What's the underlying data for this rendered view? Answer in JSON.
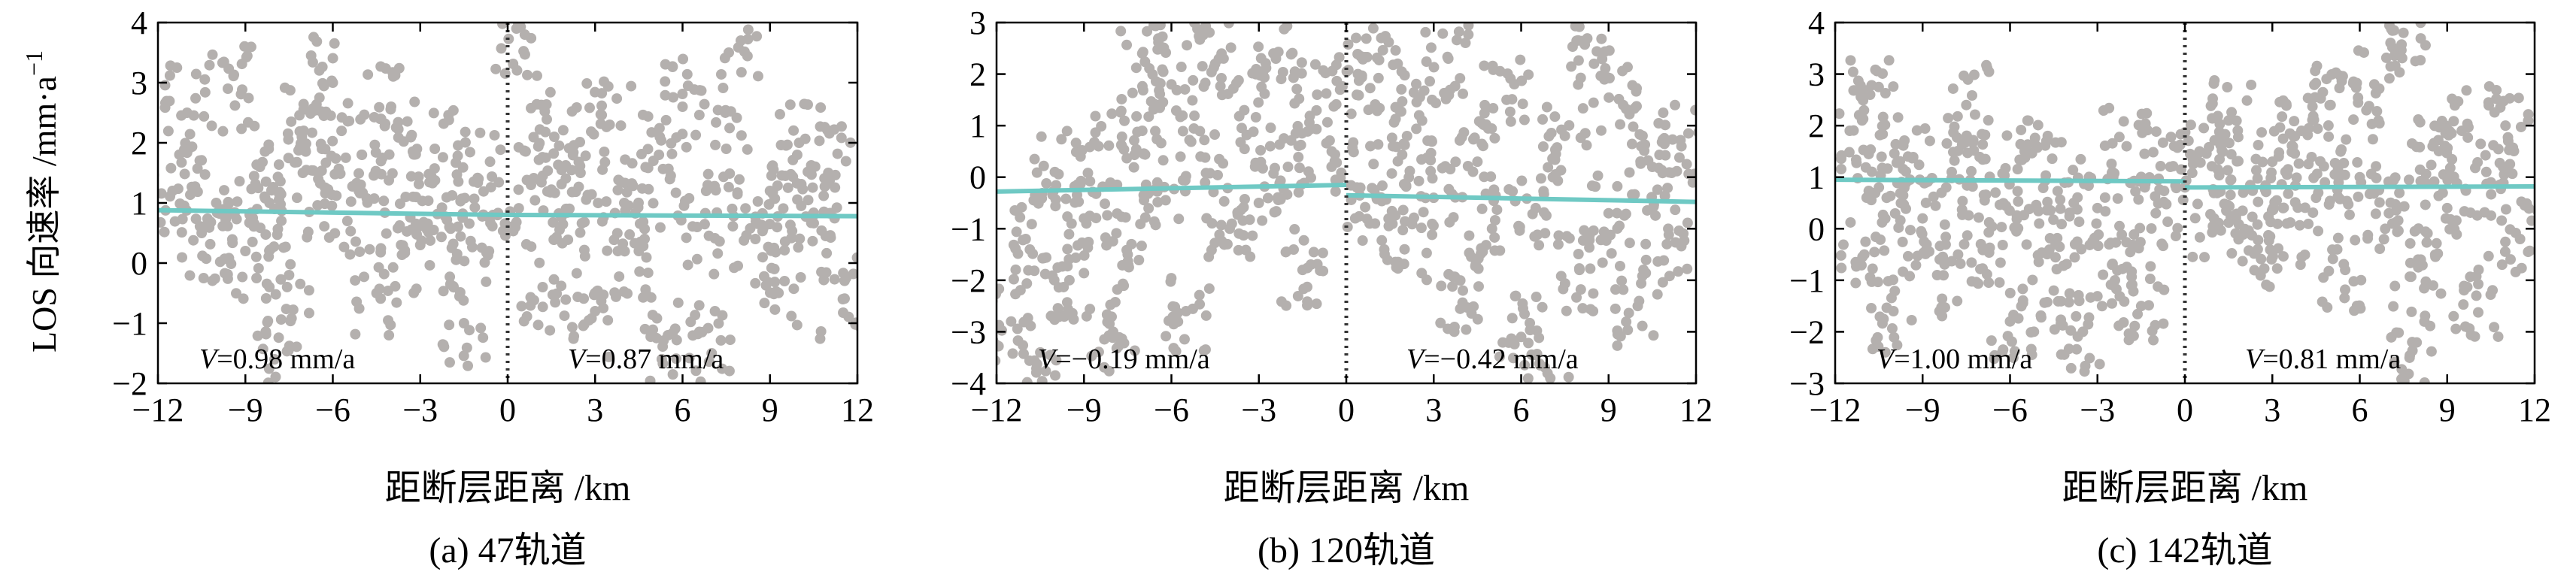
{
  "figure": {
    "ylabel": "LOS 向速率 /mm·a",
    "ylabel_sup": "−1"
  },
  "chart_data": [
    {
      "type": "scatter",
      "caption": "(a) 47轨道",
      "xlabel": "距断层距离 /km",
      "ylabel": "LOS 向速率 /mm·a⁻¹",
      "xlim": [
        -12,
        12
      ],
      "ylim": [
        -2,
        4
      ],
      "xticks": [
        -12,
        -9,
        -6,
        -3,
        0,
        3,
        6,
        9,
        12
      ],
      "yticks": [
        -2,
        -1,
        0,
        1,
        2,
        3,
        4
      ],
      "fault_x": 0,
      "left_label": "V=0.98 mm/a",
      "right_label": "V=0.87 mm/a",
      "left_label_parts": [
        "V",
        "=0.98 mm/a"
      ],
      "right_label_parts": [
        "V",
        "=0.87 mm/a"
      ],
      "trend_left": [
        [
          -12,
          0.88
        ],
        [
          0,
          0.8
        ]
      ],
      "trend_right": [
        [
          0,
          0.8
        ],
        [
          12,
          0.78
        ]
      ],
      "points": [
        [
          -11.5,
          1.2
        ],
        [
          -11,
          2.5
        ],
        [
          -10.5,
          0.5
        ],
        [
          -10,
          1.0
        ],
        [
          -9.6,
          2.9
        ],
        [
          -9,
          0.2
        ],
        [
          -8.5,
          1.6
        ],
        [
          -8,
          0.9
        ],
        [
          -7.5,
          -0.2
        ],
        [
          -7,
          2.2
        ],
        [
          -6.5,
          1.4
        ],
        [
          -6,
          3.0
        ],
        [
          -5.5,
          0.7
        ],
        [
          -5,
          1.8
        ],
        [
          -4.5,
          -0.5
        ],
        [
          -4,
          2.6
        ],
        [
          -3.5,
          1.1
        ],
        [
          -3,
          0.3
        ],
        [
          -2.5,
          1.9
        ],
        [
          -2,
          0.6
        ],
        [
          -1.5,
          -1.0
        ],
        [
          -1,
          1.4
        ],
        [
          -0.5,
          0.8
        ],
        [
          0.3,
          3.9
        ],
        [
          0.8,
          1.3
        ],
        [
          1.2,
          -0.4
        ],
        [
          1.6,
          2.1
        ],
        [
          2,
          0.9
        ],
        [
          2.5,
          1.5
        ],
        [
          3,
          -0.8
        ],
        [
          3.5,
          2.3
        ],
        [
          4,
          1.0
        ],
        [
          4.5,
          0.2
        ],
        [
          5,
          1.7
        ],
        [
          5.5,
          -1.2
        ],
        [
          6,
          2.6
        ],
        [
          6.5,
          0.6
        ],
        [
          7,
          -1.5
        ],
        [
          7.5,
          1.9
        ],
        [
          8,
          3.7
        ],
        [
          8.5,
          0.4
        ],
        [
          9,
          1.2
        ],
        [
          9.5,
          -0.3
        ],
        [
          10,
          2.0
        ],
        [
          10.5,
          0.8
        ],
        [
          11,
          1.5
        ],
        [
          11.5,
          -0.6
        ],
        [
          -8,
          -1.6
        ]
      ]
    },
    {
      "type": "scatter",
      "caption": "(b) 120轨道",
      "xlabel": "距断层距离 /km",
      "ylabel": "",
      "xlim": [
        -12,
        12
      ],
      "ylim": [
        -4,
        3
      ],
      "xticks": [
        -12,
        -9,
        -6,
        -3,
        0,
        3,
        6,
        9,
        12
      ],
      "yticks": [
        -4,
        -3,
        -2,
        -1,
        0,
        1,
        2,
        3
      ],
      "fault_x": 0,
      "left_label": "V=−0.19 mm/a",
      "right_label": "V=−0.42 mm/a",
      "left_label_parts": [
        "V",
        "=−0.19 mm/a"
      ],
      "right_label_parts": [
        "V",
        "=−0.42 mm/a"
      ],
      "trend_left": [
        [
          -12,
          -0.28
        ],
        [
          0,
          -0.15
        ]
      ],
      "trend_right": [
        [
          0,
          -0.35
        ],
        [
          12,
          -0.48
        ]
      ],
      "points": [
        [
          -11.5,
          -2.8
        ],
        [
          -11,
          -1.2
        ],
        [
          -10.5,
          -3.4
        ],
        [
          -10,
          0.1
        ],
        [
          -9.5,
          -2.0
        ],
        [
          -9,
          -0.8
        ],
        [
          -8.5,
          0.6
        ],
        [
          -8,
          -3.0
        ],
        [
          -7.5,
          -1.5
        ],
        [
          -7,
          0.9
        ],
        [
          -6.5,
          -0.2
        ],
        [
          -6,
          1.8
        ],
        [
          -5.5,
          -2.6
        ],
        [
          -5,
          0.4
        ],
        [
          -4.5,
          2.2
        ],
        [
          -4,
          -1.0
        ],
        [
          -3.5,
          1.3
        ],
        [
          -3,
          -0.5
        ],
        [
          -2.5,
          2.4
        ],
        [
          -2,
          0.2
        ],
        [
          -1.5,
          -1.8
        ],
        [
          -1,
          1.6
        ],
        [
          -0.5,
          0.5
        ],
        [
          0.4,
          2.0
        ],
        [
          0.8,
          -0.9
        ],
        [
          1.2,
          2.7
        ],
        [
          1.6,
          0.6
        ],
        [
          2,
          -1.4
        ],
        [
          2.5,
          1.2
        ],
        [
          3,
          -0.4
        ],
        [
          3.5,
          2.3
        ],
        [
          4,
          -2.2
        ],
        [
          4.5,
          0.3
        ],
        [
          5,
          -1.0
        ],
        [
          5.5,
          1.5
        ],
        [
          6,
          -3.1
        ],
        [
          6.5,
          -0.6
        ],
        [
          7,
          -3.9
        ],
        [
          7.5,
          0.8
        ],
        [
          8,
          -1.8
        ],
        [
          8.5,
          2.2
        ],
        [
          9,
          -0.7
        ],
        [
          9.5,
          1.4
        ],
        [
          10,
          -2.5
        ],
        [
          10.5,
          0.2
        ],
        [
          11,
          -1.3
        ],
        [
          11.5,
          0.6
        ],
        [
          -7,
          2.4
        ]
      ]
    },
    {
      "type": "scatter",
      "caption": "(c) 142轨道",
      "xlabel": "距断层距离 /km",
      "ylabel": "",
      "xlim": [
        -12,
        12
      ],
      "ylim": [
        -3,
        4
      ],
      "xticks": [
        -12,
        -9,
        -6,
        -3,
        0,
        3,
        6,
        9,
        12
      ],
      "yticks": [
        -3,
        -2,
        -1,
        0,
        1,
        2,
        3,
        4
      ],
      "fault_x": 0,
      "left_label": "V=1.00 mm/a",
      "right_label": "V=0.81 mm/a",
      "left_label_parts": [
        "V",
        "=1.00 mm/a"
      ],
      "right_label_parts": [
        "V",
        "=0.81 mm/a"
      ],
      "trend_left": [
        [
          -12,
          0.95
        ],
        [
          0,
          0.92
        ]
      ],
      "trend_right": [
        [
          0,
          0.8
        ],
        [
          12,
          0.82
        ]
      ],
      "points": [
        [
          -11.5,
          1.9
        ],
        [
          -11,
          -0.5
        ],
        [
          -10.5,
          0.8
        ],
        [
          -10,
          -1.6
        ],
        [
          -9.5,
          1.4
        ],
        [
          -9,
          0.2
        ],
        [
          -8.5,
          -0.9
        ],
        [
          -8,
          1.1
        ],
        [
          -7.5,
          2.4
        ],
        [
          -7,
          -0.3
        ],
        [
          -6.5,
          0.7
        ],
        [
          -6,
          -1.8
        ],
        [
          -5.5,
          1.5
        ],
        [
          -5,
          0.1
        ],
        [
          -4.5,
          -1.2
        ],
        [
          -4,
          0.9
        ],
        [
          -3.5,
          -2.0
        ],
        [
          -3,
          0.4
        ],
        [
          -2.5,
          -0.7
        ],
        [
          -2,
          1.6
        ],
        [
          -1.5,
          -1.5
        ],
        [
          -1,
          0.3
        ],
        [
          -0.5,
          1.2
        ],
        [
          0.5,
          1.5
        ],
        [
          1,
          0.2
        ],
        [
          1.5,
          2.1
        ],
        [
          2,
          0.7
        ],
        [
          2.5,
          -0.4
        ],
        [
          3,
          1.3
        ],
        [
          3.5,
          0.1
        ],
        [
          4,
          1.9
        ],
        [
          4.5,
          0.6
        ],
        [
          5,
          2.4
        ],
        [
          5.5,
          -0.8
        ],
        [
          6,
          1.0
        ],
        [
          6.5,
          2.8
        ],
        [
          7,
          0.3
        ],
        [
          7.5,
          3.8
        ],
        [
          8,
          -0.6
        ],
        [
          8.5,
          1.6
        ],
        [
          9,
          0.4
        ],
        [
          9.5,
          1.9
        ],
        [
          10,
          -1.3
        ],
        [
          10.5,
          0.9
        ],
        [
          11,
          2.0
        ],
        [
          11.5,
          -0.2
        ],
        [
          7.8,
          -2.2
        ],
        [
          -10.8,
          2.6
        ]
      ]
    }
  ],
  "colors": {
    "points": "#b4b0ae",
    "trend": "#6fc9c4",
    "axis": "#000000",
    "fault_line": "#333333"
  }
}
